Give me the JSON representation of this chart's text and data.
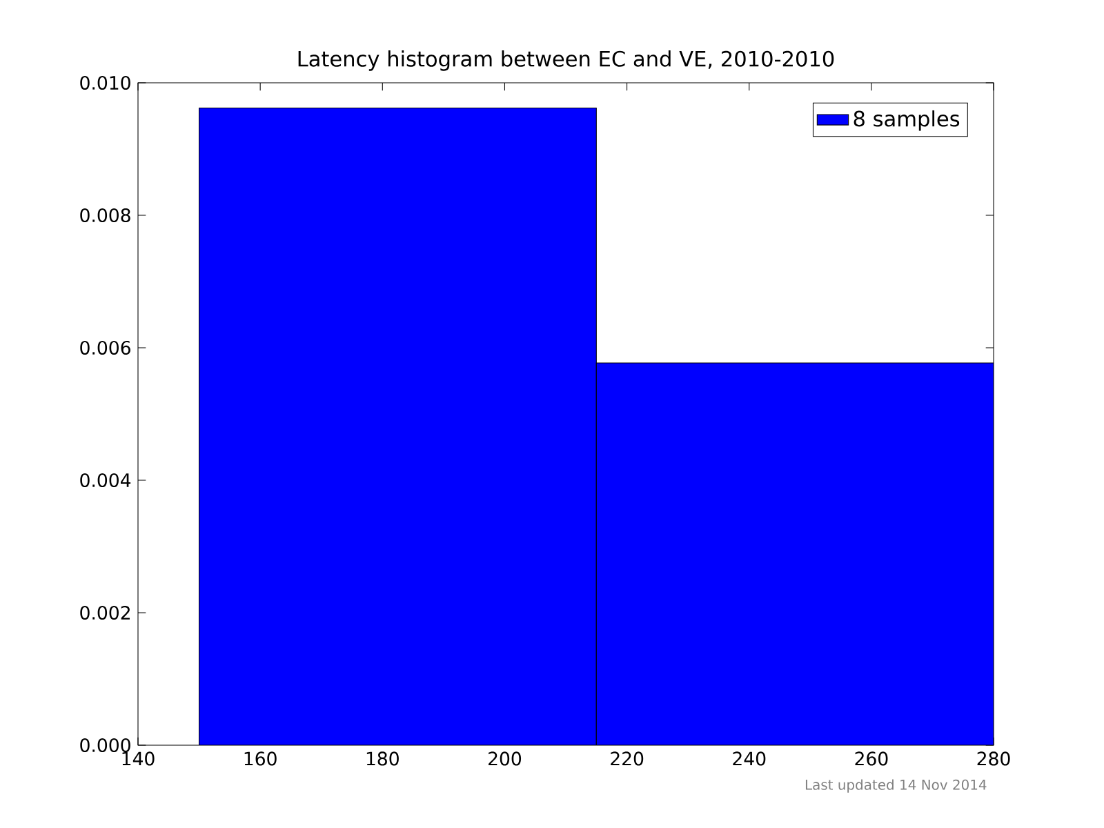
{
  "chart_data": {
    "type": "histogram",
    "title": "Latency histogram between EC and VE, 2010-2010",
    "bins": [
      150,
      215,
      280
    ],
    "series": [
      {
        "name": "8 samples",
        "color": "#0000ff",
        "values": [
          0.00962,
          0.00577
        ]
      }
    ],
    "xlim": [
      140,
      280
    ],
    "xticks": [
      140,
      160,
      180,
      200,
      220,
      240,
      260,
      280
    ],
    "ylim": [
      0,
      0.01
    ],
    "yticks": [
      {
        "value": 0,
        "label": "0.000"
      },
      0.002,
      0.004,
      0.006,
      0.008,
      {
        "value": 0.01,
        "label": "0.010"
      }
    ],
    "legend": "top right",
    "grid": false,
    "annotations": [
      "Last updated 14 Nov 2014"
    ]
  }
}
